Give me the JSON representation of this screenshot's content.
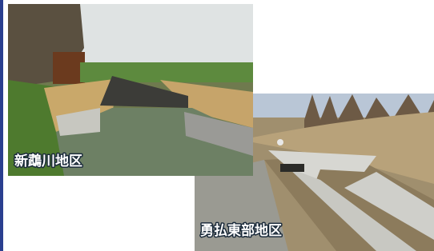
{
  "photos": [
    {
      "label": "新鵡川地区"
    },
    {
      "label": "勇払東部地区"
    }
  ]
}
